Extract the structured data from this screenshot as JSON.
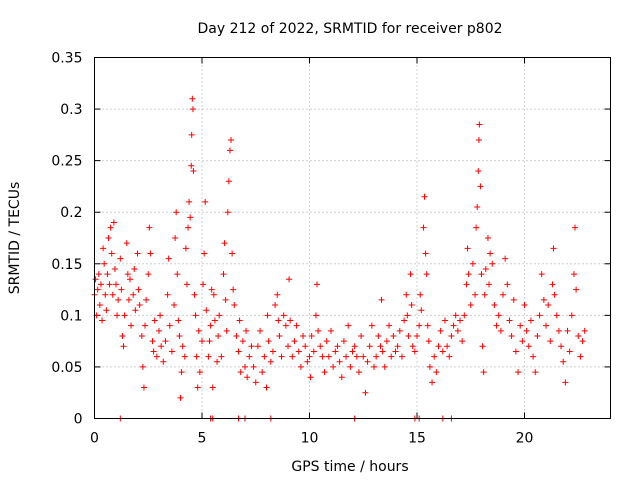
{
  "chart_data": {
    "type": "scatter",
    "title": "Day 212 of 2022, SRMTID for receiver p802",
    "xlabel": "GPS time / hours",
    "ylabel": "SRMTID / TECUs",
    "xlim": [
      0,
      24
    ],
    "ylim": [
      0,
      0.35
    ],
    "xticks": [
      0,
      5,
      10,
      15,
      20
    ],
    "xtick_labels": [
      "0",
      "5",
      "10",
      "15",
      "20"
    ],
    "yticks": [
      0,
      0.05,
      0.1,
      0.15,
      0.2,
      0.25,
      0.3,
      0.35
    ],
    "ytick_labels": [
      "0",
      "0.05",
      "0.1",
      "0.15",
      "0.2",
      "0.25",
      "0.3",
      "0.35"
    ],
    "grid": true,
    "marker": "plus",
    "color": "#ff0000",
    "series": [
      {
        "name": "SRMTID",
        "points": [
          [
            0.0,
            0.12
          ],
          [
            0.05,
            0.135
          ],
          [
            0.1,
            0.1
          ],
          [
            0.15,
            0.125
          ],
          [
            0.2,
            0.14
          ],
          [
            0.25,
            0.11
          ],
          [
            0.3,
            0.13
          ],
          [
            0.35,
            0.095
          ],
          [
            0.4,
            0.165
          ],
          [
            0.45,
            0.15
          ],
          [
            0.5,
            0.12
          ],
          [
            0.55,
            0.105
          ],
          [
            0.6,
            0.14
          ],
          [
            0.65,
            0.175
          ],
          [
            0.7,
            0.13
          ],
          [
            0.75,
            0.185
          ],
          [
            0.8,
            0.16
          ],
          [
            0.85,
            0.12
          ],
          [
            0.9,
            0.19
          ],
          [
            0.95,
            0.145
          ],
          [
            1.0,
            0.13
          ],
          [
            1.05,
            0.1
          ],
          [
            1.1,
            0.115
          ],
          [
            1.2,
            0.155
          ],
          [
            1.25,
            0.125
          ],
          [
            1.3,
            0.08
          ],
          [
            1.35,
            0.07
          ],
          [
            1.4,
            0.1
          ],
          [
            1.5,
            0.17
          ],
          [
            1.55,
            0.14
          ],
          [
            1.6,
            0.115
          ],
          [
            1.65,
            0.135
          ],
          [
            1.7,
            0.09
          ],
          [
            1.8,
            0.12
          ],
          [
            1.85,
            0.145
          ],
          [
            1.9,
            0.105
          ],
          [
            2.0,
            0.16
          ],
          [
            2.05,
            0.125
          ],
          [
            2.1,
            0.11
          ],
          [
            2.2,
            0.08
          ],
          [
            2.25,
            0.05
          ],
          [
            2.3,
            0.03
          ],
          [
            2.35,
            0.09
          ],
          [
            2.4,
            0.115
          ],
          [
            2.5,
            0.14
          ],
          [
            2.55,
            0.185
          ],
          [
            2.6,
            0.16
          ],
          [
            2.7,
            0.075
          ],
          [
            2.75,
            0.065
          ],
          [
            2.8,
            0.095
          ],
          [
            2.9,
            0.06
          ],
          [
            3.0,
            0.085
          ],
          [
            3.05,
            0.1
          ],
          [
            3.1,
            0.07
          ],
          [
            3.2,
            0.055
          ],
          [
            3.3,
            0.075
          ],
          [
            3.4,
            0.12
          ],
          [
            3.45,
            0.155
          ],
          [
            3.5,
            0.09
          ],
          [
            3.6,
            0.065
          ],
          [
            3.7,
            0.11
          ],
          [
            3.75,
            0.175
          ],
          [
            3.8,
            0.2
          ],
          [
            3.85,
            0.14
          ],
          [
            3.9,
            0.095
          ],
          [
            3.95,
            0.08
          ],
          [
            4.0,
            0.02
          ],
          [
            4.05,
            0.045
          ],
          [
            4.1,
            0.07
          ],
          [
            4.2,
            0.06
          ],
          [
            4.25,
            0.165
          ],
          [
            4.3,
            0.13
          ],
          [
            4.35,
            0.185
          ],
          [
            4.4,
            0.21
          ],
          [
            4.45,
            0.195
          ],
          [
            4.5,
            0.245
          ],
          [
            4.52,
            0.275
          ],
          [
            4.55,
            0.31
          ],
          [
            4.58,
            0.3
          ],
          [
            4.6,
            0.24
          ],
          [
            4.65,
            0.12
          ],
          [
            4.7,
            0.1
          ],
          [
            4.75,
            0.06
          ],
          [
            4.8,
            0.03
          ],
          [
            4.85,
            0.085
          ],
          [
            4.9,
            0.045
          ],
          [
            5.0,
            0.075
          ],
          [
            5.05,
            0.13
          ],
          [
            5.1,
            0.16
          ],
          [
            5.15,
            0.21
          ],
          [
            5.2,
            0.105
          ],
          [
            5.3,
            0.06
          ],
          [
            5.35,
            0.075
          ],
          [
            5.4,
            0.09
          ],
          [
            5.45,
            0.125
          ],
          [
            5.5,
            0.03
          ],
          [
            5.55,
            0.12
          ],
          [
            5.6,
            0.095
          ],
          [
            5.7,
            0.055
          ],
          [
            5.75,
            0.08
          ],
          [
            5.8,
            0.1
          ],
          [
            5.9,
            0.06
          ],
          [
            6.0,
            0.14
          ],
          [
            6.05,
            0.17
          ],
          [
            6.1,
            0.115
          ],
          [
            6.15,
            0.085
          ],
          [
            6.2,
            0.2
          ],
          [
            6.25,
            0.23
          ],
          [
            6.3,
            0.26
          ],
          [
            6.35,
            0.27
          ],
          [
            6.4,
            0.16
          ],
          [
            6.45,
            0.125
          ],
          [
            6.5,
            0.11
          ],
          [
            6.6,
            0.08
          ],
          [
            6.7,
            0.065
          ],
          [
            6.75,
            0.095
          ],
          [
            6.8,
            0.045
          ],
          [
            6.9,
            0.075
          ],
          [
            7.0,
            0.05
          ],
          [
            7.05,
            0.085
          ],
          [
            7.1,
            0.04
          ],
          [
            7.2,
            0.06
          ],
          [
            7.3,
            0.07
          ],
          [
            7.4,
            0.05
          ],
          [
            7.5,
            0.035
          ],
          [
            7.6,
            0.07
          ],
          [
            7.7,
            0.085
          ],
          [
            7.8,
            0.045
          ],
          [
            7.9,
            0.06
          ],
          [
            8.0,
            0.03
          ],
          [
            8.05,
            0.1
          ],
          [
            8.1,
            0.075
          ],
          [
            8.2,
            0.055
          ],
          [
            8.3,
            0.065
          ],
          [
            8.4,
            0.11
          ],
          [
            8.5,
            0.12
          ],
          [
            8.55,
            0.095
          ],
          [
            8.6,
            0.08
          ],
          [
            8.7,
            0.06
          ],
          [
            8.8,
            0.1
          ],
          [
            8.9,
            0.09
          ],
          [
            9.0,
            0.07
          ],
          [
            9.05,
            0.135
          ],
          [
            9.1,
            0.095
          ],
          [
            9.2,
            0.06
          ],
          [
            9.3,
            0.075
          ],
          [
            9.4,
            0.09
          ],
          [
            9.5,
            0.065
          ],
          [
            9.6,
            0.05
          ],
          [
            9.7,
            0.08
          ],
          [
            9.8,
            0.07
          ],
          [
            9.9,
            0.055
          ],
          [
            10.0,
            0.06
          ],
          [
            10.05,
            0.04
          ],
          [
            10.1,
            0.08
          ],
          [
            10.2,
            0.065
          ],
          [
            10.3,
            0.1
          ],
          [
            10.35,
            0.13
          ],
          [
            10.4,
            0.085
          ],
          [
            10.5,
            0.07
          ],
          [
            10.6,
            0.06
          ],
          [
            10.7,
            0.045
          ],
          [
            10.8,
            0.075
          ],
          [
            10.9,
            0.06
          ],
          [
            11.0,
            0.085
          ],
          [
            11.1,
            0.05
          ],
          [
            11.2,
            0.065
          ],
          [
            11.3,
            0.07
          ],
          [
            11.4,
            0.055
          ],
          [
            11.5,
            0.04
          ],
          [
            11.6,
            0.075
          ],
          [
            11.7,
            0.06
          ],
          [
            11.8,
            0.09
          ],
          [
            11.9,
            0.05
          ],
          [
            12.0,
            0.065
          ],
          [
            12.1,
            0.07
          ],
          [
            12.2,
            0.06
          ],
          [
            12.3,
            0.045
          ],
          [
            12.4,
            0.08
          ],
          [
            12.5,
            0.06
          ],
          [
            12.6,
            0.025
          ],
          [
            12.7,
            0.055
          ],
          [
            12.8,
            0.07
          ],
          [
            12.9,
            0.09
          ],
          [
            13.0,
            0.05
          ],
          [
            13.1,
            0.06
          ],
          [
            13.2,
            0.08
          ],
          [
            13.3,
            0.07
          ],
          [
            13.35,
            0.115
          ],
          [
            13.4,
            0.065
          ],
          [
            13.5,
            0.05
          ],
          [
            13.6,
            0.075
          ],
          [
            13.7,
            0.09
          ],
          [
            13.8,
            0.06
          ],
          [
            13.9,
            0.08
          ],
          [
            14.0,
            0.065
          ],
          [
            14.1,
            0.07
          ],
          [
            14.2,
            0.085
          ],
          [
            14.3,
            0.06
          ],
          [
            14.4,
            0.095
          ],
          [
            14.5,
            0.12
          ],
          [
            14.55,
            0.1
          ],
          [
            14.6,
            0.08
          ],
          [
            14.7,
            0.14
          ],
          [
            14.75,
            0.11
          ],
          [
            14.8,
            0.07
          ],
          [
            14.9,
            0.065
          ],
          [
            15.0,
            0.08
          ],
          [
            15.1,
            0.09
          ],
          [
            15.15,
            0.12
          ],
          [
            15.2,
            0.105
          ],
          [
            15.3,
            0.185
          ],
          [
            15.35,
            0.215
          ],
          [
            15.4,
            0.16
          ],
          [
            15.45,
            0.14
          ],
          [
            15.5,
            0.09
          ],
          [
            15.55,
            0.075
          ],
          [
            15.6,
            0.05
          ],
          [
            15.7,
            0.035
          ],
          [
            15.8,
            0.06
          ],
          [
            15.9,
            0.045
          ],
          [
            16.0,
            0.07
          ],
          [
            16.1,
            0.085
          ],
          [
            16.2,
            0.065
          ],
          [
            16.3,
            0.095
          ],
          [
            16.4,
            0.07
          ],
          [
            16.5,
            0.06
          ],
          [
            16.6,
            0.08
          ],
          [
            16.7,
            0.09
          ],
          [
            16.8,
            0.1
          ],
          [
            16.9,
            0.085
          ],
          [
            17.0,
            0.095
          ],
          [
            17.1,
            0.075
          ],
          [
            17.2,
            0.1
          ],
          [
            17.3,
            0.13
          ],
          [
            17.35,
            0.165
          ],
          [
            17.4,
            0.14
          ],
          [
            17.5,
            0.11
          ],
          [
            17.6,
            0.15
          ],
          [
            17.7,
            0.12
          ],
          [
            17.75,
            0.185
          ],
          [
            17.8,
            0.205
          ],
          [
            17.85,
            0.24
          ],
          [
            17.88,
            0.27
          ],
          [
            17.9,
            0.285
          ],
          [
            17.95,
            0.225
          ],
          [
            18.0,
            0.14
          ],
          [
            18.05,
            0.07
          ],
          [
            18.1,
            0.045
          ],
          [
            18.15,
            0.12
          ],
          [
            18.2,
            0.145
          ],
          [
            18.3,
            0.175
          ],
          [
            18.35,
            0.13
          ],
          [
            18.4,
            0.16
          ],
          [
            18.5,
            0.15
          ],
          [
            18.6,
            0.11
          ],
          [
            18.7,
            0.09
          ],
          [
            18.8,
            0.1
          ],
          [
            18.9,
            0.085
          ],
          [
            19.0,
            0.12
          ],
          [
            19.1,
            0.155
          ],
          [
            19.2,
            0.13
          ],
          [
            19.3,
            0.095
          ],
          [
            19.4,
            0.08
          ],
          [
            19.5,
            0.115
          ],
          [
            19.6,
            0.065
          ],
          [
            19.7,
            0.045
          ],
          [
            19.8,
            0.09
          ],
          [
            19.9,
            0.075
          ],
          [
            20.0,
            0.11
          ],
          [
            20.1,
            0.085
          ],
          [
            20.2,
            0.07
          ],
          [
            20.3,
            0.095
          ],
          [
            20.4,
            0.06
          ],
          [
            20.5,
            0.045
          ],
          [
            20.6,
            0.08
          ],
          [
            20.7,
            0.1
          ],
          [
            20.8,
            0.14
          ],
          [
            20.9,
            0.115
          ],
          [
            21.0,
            0.09
          ],
          [
            21.1,
            0.11
          ],
          [
            21.2,
            0.075
          ],
          [
            21.3,
            0.13
          ],
          [
            21.35,
            0.165
          ],
          [
            21.4,
            0.12
          ],
          [
            21.5,
            0.1
          ],
          [
            21.6,
            0.085
          ],
          [
            21.7,
            0.07
          ],
          [
            21.8,
            0.055
          ],
          [
            21.9,
            0.035
          ],
          [
            22.0,
            0.085
          ],
          [
            22.1,
            0.065
          ],
          [
            22.2,
            0.1
          ],
          [
            22.3,
            0.14
          ],
          [
            22.35,
            0.185
          ],
          [
            22.4,
            0.125
          ],
          [
            22.5,
            0.08
          ],
          [
            22.6,
            0.06
          ],
          [
            22.7,
            0.075
          ],
          [
            22.8,
            0.085
          ]
        ]
      },
      {
        "name": "zero-values",
        "points": [
          [
            1.2,
            0
          ],
          [
            5.4,
            0
          ],
          [
            5.5,
            0
          ],
          [
            6.7,
            0
          ],
          [
            7.0,
            0
          ],
          [
            8.2,
            0
          ],
          [
            12.1,
            0
          ],
          [
            14.9,
            0
          ],
          [
            15.1,
            0
          ],
          [
            16.2,
            0
          ],
          [
            16.6,
            0
          ]
        ]
      }
    ]
  }
}
